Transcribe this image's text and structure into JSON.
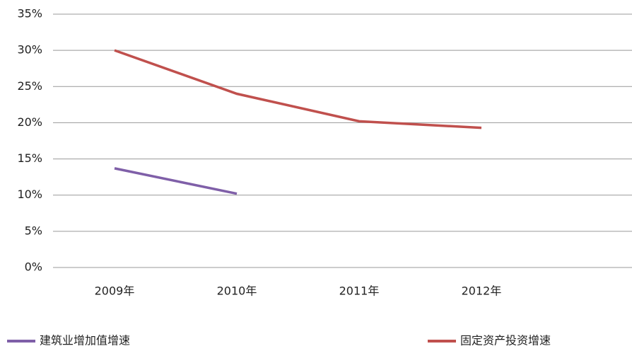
{
  "chart_data": {
    "type": "line",
    "categories": [
      "2009年",
      "2010年",
      "2011年",
      "2012年"
    ],
    "series": [
      {
        "name": "建筑业增加值增速",
        "color": "#7f5fa8",
        "values": [
          13.7,
          10.2,
          null,
          null
        ]
      },
      {
        "name": "固定资产投资增速",
        "color": "#c0504d",
        "values": [
          30,
          24,
          20.2,
          19.3
        ]
      }
    ],
    "ylim": [
      0,
      35
    ],
    "yticks": [
      {
        "value": 0,
        "label": "0%"
      },
      {
        "value": 5,
        "label": "5%"
      },
      {
        "value": 10,
        "label": "10%"
      },
      {
        "value": 15,
        "label": "15%"
      },
      {
        "value": 20,
        "label": "20%"
      },
      {
        "value": 25,
        "label": "25%"
      },
      {
        "value": 30,
        "label": "30%"
      },
      {
        "value": 35,
        "label": "35%"
      }
    ],
    "grid": true,
    "legend": "bottom"
  }
}
